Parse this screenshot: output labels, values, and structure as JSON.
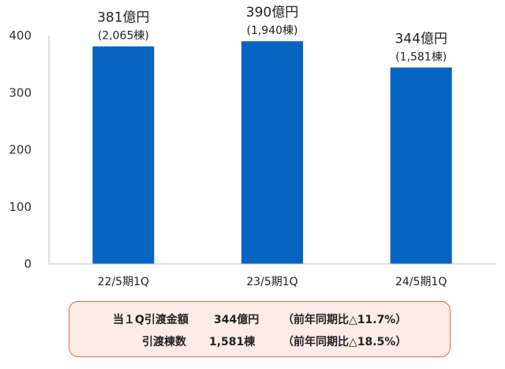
{
  "chart_data": {
    "type": "bar",
    "categories": [
      "22/5期1Q",
      "23/5期1Q",
      "24/5期1Q"
    ],
    "values": [
      381,
      390,
      344
    ],
    "value_labels": [
      "381億円",
      "390億円",
      "344億円"
    ],
    "sub_labels": [
      "(2,065棟)",
      "(1,940棟)",
      "(1,581棟)"
    ],
    "y_ticks": [
      0,
      100,
      200,
      300,
      400
    ],
    "ylim": [
      0,
      400
    ],
    "bar_color": "#0563c1",
    "title": "",
    "xlabel": "",
    "ylabel": ""
  },
  "summary": {
    "line1": {
      "label": "当１Q引渡金額",
      "value": "344億円",
      "comparison": "（前年同期比△11.7%）"
    },
    "line2": {
      "label": "引渡棟数",
      "value": "1,581棟",
      "comparison": "（前年同期比△18.5%）"
    },
    "border_color": "#e8674a",
    "fill_color": "#fdece5"
  }
}
